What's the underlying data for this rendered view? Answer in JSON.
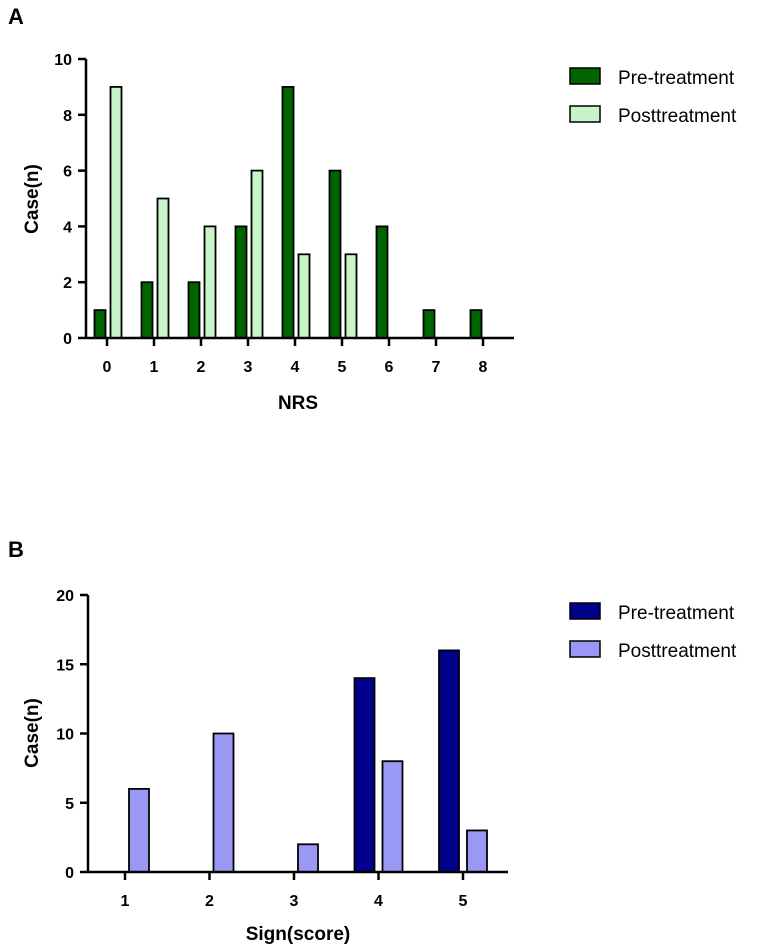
{
  "chart_data": [
    {
      "panel_label": "A",
      "type": "bar",
      "title": "",
      "xlabel": "NRS",
      "ylabel": "Case(n)",
      "categories": [
        "0",
        "1",
        "2",
        "3",
        "4",
        "5",
        "6",
        "7",
        "8"
      ],
      "yticks": [
        "0",
        "2",
        "4",
        "6",
        "8",
        "10"
      ],
      "ylim": [
        0,
        10
      ],
      "grid": false,
      "legend_position": "top-right",
      "series": [
        {
          "name": "Pre-treatment",
          "color": "#006400",
          "values": [
            1,
            2,
            2,
            4,
            9,
            6,
            4,
            1,
            1
          ]
        },
        {
          "name": "Posttreatment",
          "color": "#c8f5c8",
          "values": [
            9,
            5,
            4,
            6,
            3,
            3,
            0,
            0,
            0
          ]
        }
      ]
    },
    {
      "panel_label": "B",
      "type": "bar",
      "title": "",
      "xlabel": "Sign(score)",
      "ylabel": "Case(n)",
      "categories": [
        "1",
        "2",
        "3",
        "4",
        "5"
      ],
      "yticks": [
        "0",
        "5",
        "10",
        "15",
        "20"
      ],
      "ylim": [
        0,
        20
      ],
      "grid": false,
      "legend_position": "top-right",
      "series": [
        {
          "name": "Pre-treatment",
          "color": "#00008b",
          "values": [
            0,
            0,
            0,
            14,
            16
          ]
        },
        {
          "name": "Posttreatment",
          "color": "#9999f5",
          "values": [
            6,
            10,
            2,
            8,
            3
          ]
        }
      ]
    }
  ]
}
